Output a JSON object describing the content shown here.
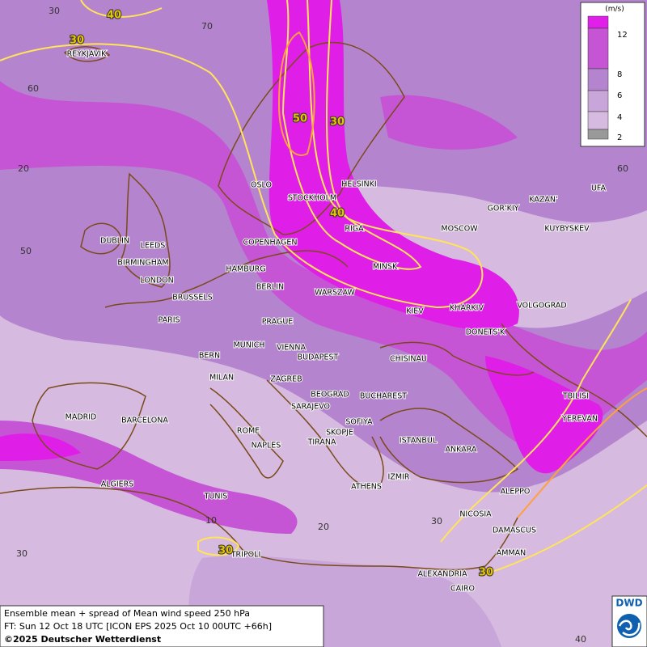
{
  "map": {
    "cities": [
      "REYKJAVIK",
      "OSLO",
      "STOCKHOLM",
      "HELSINKI",
      "DUBLIN",
      "LEEDS",
      "BIRMINGHAM",
      "LONDON",
      "COPENHAGEN",
      "RIGA",
      "MOSCOW",
      "GOR'KIY",
      "KAZAN'",
      "UFA",
      "KUYBYSKEV",
      "HAMBURG",
      "BERLIN",
      "MINSK",
      "BRUSSELS",
      "WARSZAW",
      "KIEV",
      "KHARKIV",
      "VOLGOGRAD",
      "PARIS",
      "PRAGUE",
      "DONETS'K",
      "MUNICH",
      "VIENNA",
      "BERN",
      "BUDAPEST",
      "CHISINAU",
      "MILAN",
      "ZAGREB",
      "BEOGRAD",
      "BUCHAREST",
      "TBILISI",
      "MADRID",
      "BARCELONA",
      "SARAJEVO",
      "SOFIYA",
      "YEREVAN",
      "ROME",
      "SKOPJE",
      "NAPLES",
      "TIRANA",
      "ISTANBUL",
      "ANKARA",
      "ALGIERS",
      "ATHENS",
      "IZMIR",
      "TUNIS",
      "ALEPPO",
      "NICOSIA",
      "DAMASCUS",
      "TRIPOLI",
      "AMMAN",
      "ALEXANDRIA",
      "CAIRO"
    ],
    "contour_labels": [
      40,
      30,
      50,
      30,
      40,
      30,
      30
    ],
    "grid_labels": [
      30,
      70,
      60,
      20,
      60,
      50,
      10,
      20,
      30,
      30,
      40
    ]
  },
  "legend": {
    "unit": "(m/s)",
    "levels": [
      2,
      4,
      6,
      8,
      12
    ]
  },
  "footer": {
    "line1": "Ensemble mean + spread of Mean wind speed 250 hPa",
    "line2": "FT: Sun 12 Oct 18 UTC [ICON EPS 2025 Oct 10 00UTC +66h]",
    "line3": "©2025 Deutscher Wetterdienst"
  },
  "logo": "DWD"
}
